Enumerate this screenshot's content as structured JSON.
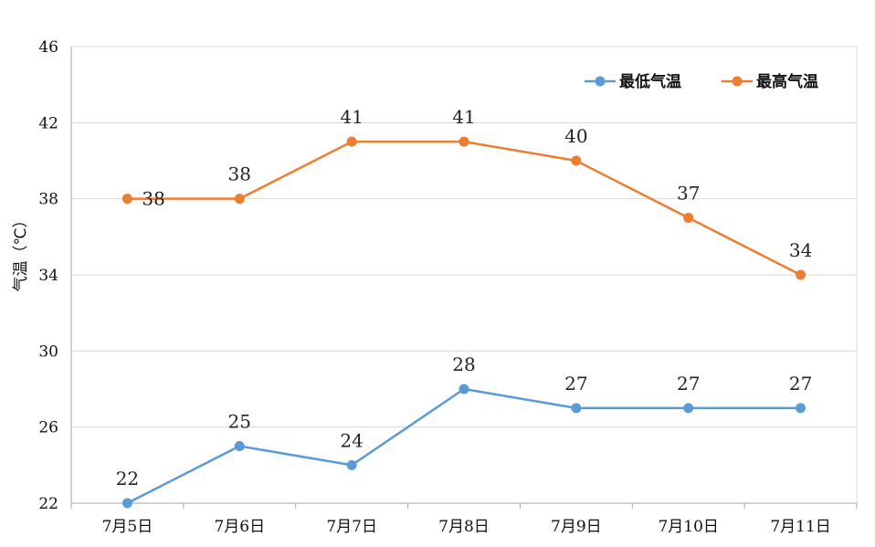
{
  "chart_data": {
    "type": "line",
    "categories": [
      "7月5日",
      "7月6日",
      "7月7日",
      "7月8日",
      "7月9日",
      "7月10日",
      "7月11日"
    ],
    "series": [
      {
        "name": "最低气温",
        "values": [
          22,
          25,
          24,
          28,
          27,
          27,
          27
        ],
        "color": "#5b9bd5"
      },
      {
        "name": "最高气温",
        "values": [
          38,
          38,
          41,
          41,
          40,
          37,
          34
        ],
        "color": "#ed7d31"
      }
    ],
    "title": "",
    "xlabel": "",
    "ylabel": "气温（℃）",
    "ylim": [
      22,
      46
    ],
    "yticks": [
      22,
      26,
      30,
      34,
      38,
      42,
      46
    ],
    "grid": true,
    "legend_position": "top-right",
    "data_labels": true
  }
}
